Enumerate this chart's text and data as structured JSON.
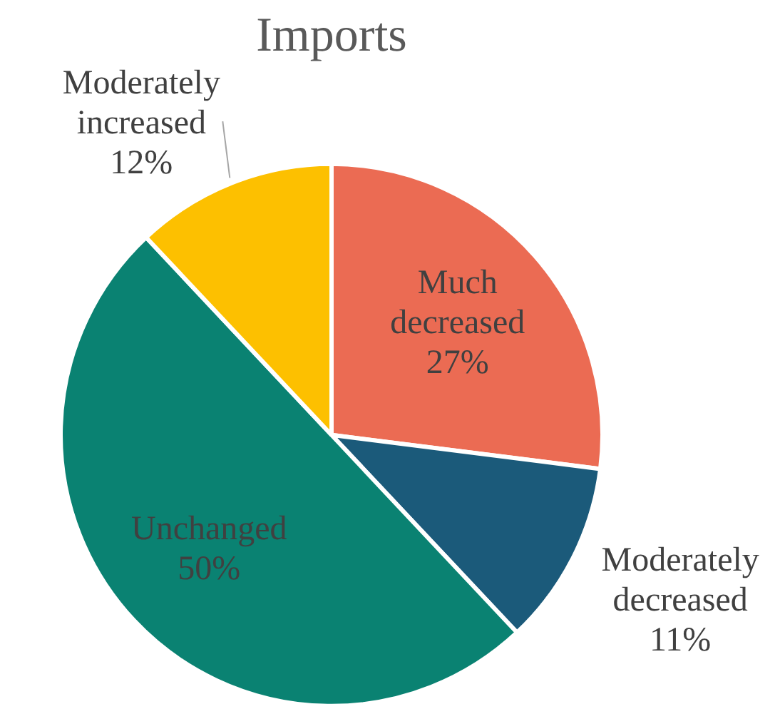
{
  "chart_data": {
    "type": "pie",
    "title": "Imports",
    "categories": [
      "Much decreased",
      "Moderately decreased",
      "Unchanged",
      "Moderately increased"
    ],
    "values": [
      27,
      11,
      50,
      12
    ],
    "colors": [
      "#eb6b53",
      "#1b5a7a",
      "#0a8272",
      "#fdc000"
    ],
    "value_labels": [
      "27%",
      "11%",
      "50%",
      "12%"
    ],
    "legend": false
  }
}
